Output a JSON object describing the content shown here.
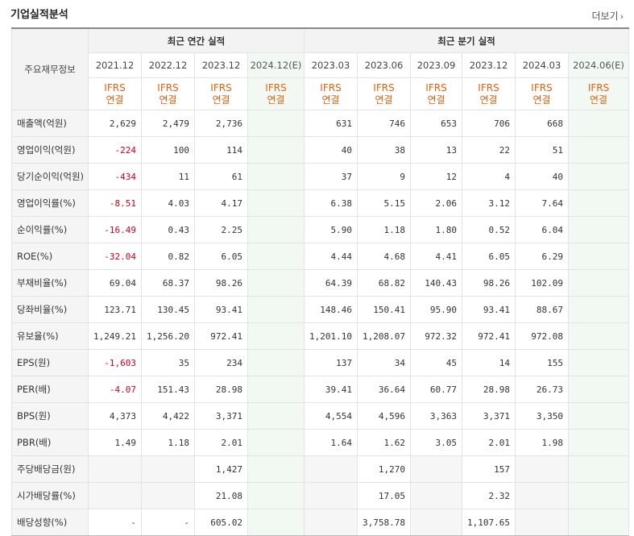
{
  "title": "기업실적분석",
  "more_label": "더보기",
  "header": {
    "row_label": "주요재무정보",
    "annual_label": "최근 연간 실적",
    "quarter_label": "최근 분기 실적",
    "periods": [
      "2021.12",
      "2022.12",
      "2023.12",
      "2024.12(E)",
      "2023.03",
      "2023.06",
      "2023.09",
      "2023.12",
      "2024.03",
      "2024.06(E)"
    ],
    "ifrs_top": "IFRS",
    "ifrs_bottom": "연결"
  },
  "rows": [
    {
      "label": "매출액(억원)",
      "values": [
        "2,629",
        "2,479",
        "2,736",
        "",
        "631",
        "746",
        "653",
        "706",
        "668",
        ""
      ]
    },
    {
      "label": "영업이익(억원)",
      "values": [
        "-224",
        "100",
        "114",
        "",
        "40",
        "38",
        "13",
        "22",
        "51",
        ""
      ]
    },
    {
      "label": "당기순이익(억원)",
      "values": [
        "-434",
        "11",
        "61",
        "",
        "37",
        "9",
        "12",
        "4",
        "40",
        ""
      ]
    },
    {
      "label": "영업이익률(%)",
      "values": [
        "-8.51",
        "4.03",
        "4.17",
        "",
        "6.38",
        "5.15",
        "2.06",
        "3.12",
        "7.64",
        ""
      ]
    },
    {
      "label": "순이익률(%)",
      "values": [
        "-16.49",
        "0.43",
        "2.25",
        "",
        "5.90",
        "1.18",
        "1.80",
        "0.52",
        "6.04",
        ""
      ]
    },
    {
      "label": "ROE(%)",
      "values": [
        "-32.04",
        "0.82",
        "6.05",
        "",
        "4.44",
        "4.68",
        "4.41",
        "6.05",
        "6.29",
        ""
      ]
    },
    {
      "label": "부채비율(%)",
      "values": [
        "69.04",
        "68.37",
        "98.26",
        "",
        "64.39",
        "68.82",
        "140.43",
        "98.26",
        "102.09",
        ""
      ]
    },
    {
      "label": "당좌비율(%)",
      "values": [
        "123.71",
        "130.45",
        "93.41",
        "",
        "148.46",
        "150.41",
        "95.90",
        "93.41",
        "88.67",
        ""
      ]
    },
    {
      "label": "유보율(%)",
      "values": [
        "1,249.21",
        "1,256.20",
        "972.41",
        "",
        "1,201.10",
        "1,208.07",
        "972.32",
        "972.41",
        "972.08",
        ""
      ]
    },
    {
      "label": "EPS(원)",
      "values": [
        "-1,603",
        "35",
        "234",
        "",
        "137",
        "34",
        "45",
        "14",
        "155",
        ""
      ]
    },
    {
      "label": "PER(배)",
      "values": [
        "-4.07",
        "151.43",
        "28.98",
        "",
        "39.41",
        "36.64",
        "60.77",
        "28.98",
        "26.73",
        ""
      ]
    },
    {
      "label": "BPS(원)",
      "values": [
        "4,373",
        "4,422",
        "3,371",
        "",
        "4,554",
        "4,596",
        "3,363",
        "3,371",
        "3,350",
        ""
      ]
    },
    {
      "label": "PBR(배)",
      "values": [
        "1.49",
        "1.18",
        "2.01",
        "",
        "1.64",
        "1.62",
        "3.05",
        "2.01",
        "1.98",
        ""
      ]
    },
    {
      "label": "주당배당금(원)",
      "values": [
        "",
        "",
        "1,427",
        "",
        "",
        "1,270",
        "",
        "157",
        "",
        ""
      ]
    },
    {
      "label": "시가배당률(%)",
      "values": [
        "",
        "",
        "21.08",
        "",
        "",
        "17.05",
        "",
        "2.32",
        "",
        ""
      ]
    },
    {
      "label": "배당성향(%)",
      "values": [
        "-",
        "-",
        "605.02",
        "",
        "",
        "3,758.78",
        "",
        "1,107.65",
        "",
        ""
      ]
    }
  ]
}
